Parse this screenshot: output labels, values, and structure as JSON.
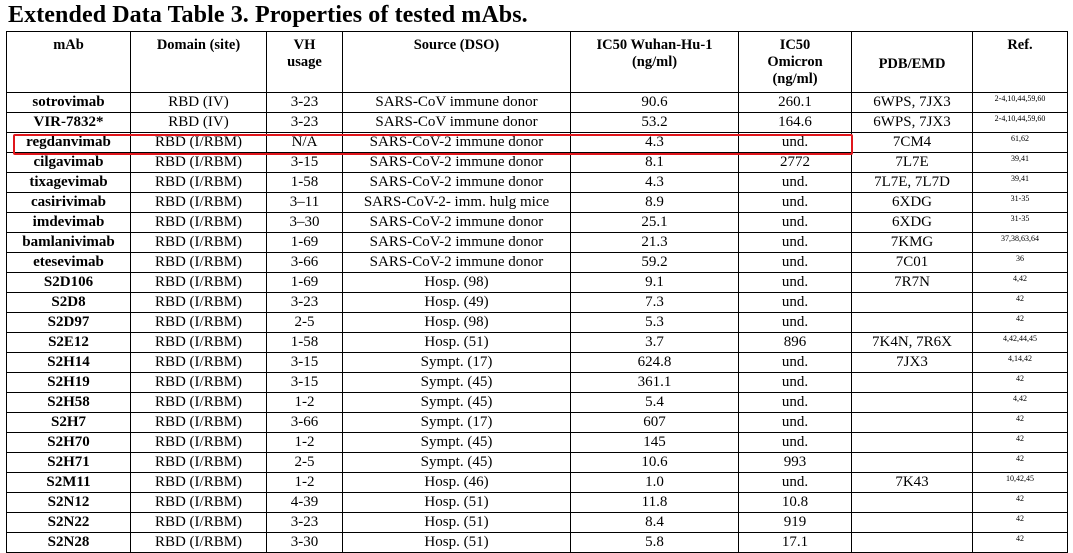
{
  "title": "Extended Data Table 3. Properties of tested mAbs.",
  "colors": {
    "highlight": "#e0161c"
  },
  "columns": [
    {
      "key": "mab",
      "label": "mAb"
    },
    {
      "key": "domain",
      "label": "Domain (site)"
    },
    {
      "key": "vh",
      "label": "VH\nusage"
    },
    {
      "key": "source",
      "label": "Source (DSO)"
    },
    {
      "key": "ic50_wuhan",
      "label": "IC50 Wuhan-Hu-1\n(ng/ml)"
    },
    {
      "key": "ic50_omicron",
      "label": "IC50\nOmicron\n(ng/ml)"
    },
    {
      "key": "pdb",
      "label": "PDB/EMD"
    },
    {
      "key": "ref",
      "label": "Ref."
    }
  ],
  "highlighted_row": "regdanvimab",
  "rows": [
    {
      "mab": "sotrovimab",
      "domain": "RBD (IV)",
      "vh": "3-23",
      "source": "SARS-CoV immune donor",
      "ic50_wuhan": "90.6",
      "ic50_omicron": "260.1",
      "pdb": "6WPS, 7JX3",
      "ref": "2-4,10,44,59,60"
    },
    {
      "mab": "VIR-7832*",
      "domain": "RBD (IV)",
      "vh": "3-23",
      "source": "SARS-CoV immune donor",
      "ic50_wuhan": "53.2",
      "ic50_omicron": "164.6",
      "pdb": "6WPS, 7JX3",
      "ref": "2-4,10,44,59,60"
    },
    {
      "mab": "regdanvimab",
      "domain": "RBD (I/RBM)",
      "vh": "N/A",
      "source": "SARS-CoV-2 immune donor",
      "ic50_wuhan": "4.3",
      "ic50_omicron": "und.",
      "pdb": "7CM4",
      "ref": "61,62"
    },
    {
      "mab": "cilgavimab",
      "domain": "RBD (I/RBM)",
      "vh": "3-15",
      "source": "SARS-CoV-2 immune donor",
      "ic50_wuhan": "8.1",
      "ic50_omicron": "2772",
      "pdb": "7L7E",
      "ref": "39,41"
    },
    {
      "mab": "tixagevimab",
      "domain": "RBD (I/RBM)",
      "vh": "1-58",
      "source": "SARS-CoV-2 immune donor",
      "ic50_wuhan": "4.3",
      "ic50_omicron": "und.",
      "pdb": "7L7E, 7L7D",
      "ref": "39,41"
    },
    {
      "mab": "casirivimab",
      "domain": "RBD (I/RBM)",
      "vh": "3–11",
      "source": "SARS-CoV-2- imm. hulg mice",
      "ic50_wuhan": "8.9",
      "ic50_omicron": "und.",
      "pdb": "6XDG",
      "ref": "31-35"
    },
    {
      "mab": "imdevimab",
      "domain": "RBD (I/RBM)",
      "vh": "3–30",
      "source": "SARS-CoV-2 immune donor",
      "ic50_wuhan": "25.1",
      "ic50_omicron": "und.",
      "pdb": "6XDG",
      "ref": "31-35"
    },
    {
      "mab": "bamlanivimab",
      "domain": "RBD (I/RBM)",
      "vh": "1-69",
      "source": "SARS-CoV-2 immune donor",
      "ic50_wuhan": "21.3",
      "ic50_omicron": "und.",
      "pdb": "7KMG",
      "ref": "37,38,63,64"
    },
    {
      "mab": "etesevimab",
      "domain": "RBD (I/RBM)",
      "vh": "3-66",
      "source": "SARS-CoV-2 immune donor",
      "ic50_wuhan": "59.2",
      "ic50_omicron": "und.",
      "pdb": "7C01",
      "ref": "36"
    },
    {
      "mab": "S2D106",
      "domain": "RBD (I/RBM)",
      "vh": "1-69",
      "source": "Hosp. (98)",
      "ic50_wuhan": "9.1",
      "ic50_omicron": "und.",
      "pdb": "7R7N",
      "ref": "4,42"
    },
    {
      "mab": "S2D8",
      "domain": "RBD (I/RBM)",
      "vh": "3-23",
      "source": "Hosp. (49)",
      "ic50_wuhan": "7.3",
      "ic50_omicron": "und.",
      "pdb": "",
      "ref": "42"
    },
    {
      "mab": "S2D97",
      "domain": "RBD (I/RBM)",
      "vh": "2-5",
      "source": "Hosp. (98)",
      "ic50_wuhan": "5.3",
      "ic50_omicron": "und.",
      "pdb": "",
      "ref": "42"
    },
    {
      "mab": "S2E12",
      "domain": "RBD (I/RBM)",
      "vh": "1-58",
      "source": "Hosp. (51)",
      "ic50_wuhan": "3.7",
      "ic50_omicron": "896",
      "pdb": "7K4N, 7R6X",
      "ref": "4,42,44,45"
    },
    {
      "mab": "S2H14",
      "domain": "RBD (I/RBM)",
      "vh": "3-15",
      "source": "Sympt. (17)",
      "ic50_wuhan": "624.8",
      "ic50_omicron": "und.",
      "pdb": "7JX3",
      "ref": "4,14,42"
    },
    {
      "mab": "S2H19",
      "domain": "RBD (I/RBM)",
      "vh": "3-15",
      "source": "Sympt. (45)",
      "ic50_wuhan": "361.1",
      "ic50_omicron": "und.",
      "pdb": "",
      "ref": "42"
    },
    {
      "mab": "S2H58",
      "domain": "RBD (I/RBM)",
      "vh": "1-2",
      "source": "Sympt. (45)",
      "ic50_wuhan": "5.4",
      "ic50_omicron": "und.",
      "pdb": "",
      "ref": "4,42"
    },
    {
      "mab": "S2H7",
      "domain": "RBD (I/RBM)",
      "vh": "3-66",
      "source": "Sympt. (17)",
      "ic50_wuhan": "607",
      "ic50_omicron": "und.",
      "pdb": "",
      "ref": "42"
    },
    {
      "mab": "S2H70",
      "domain": "RBD (I/RBM)",
      "vh": "1-2",
      "source": "Sympt. (45)",
      "ic50_wuhan": "145",
      "ic50_omicron": "und.",
      "pdb": "",
      "ref": "42"
    },
    {
      "mab": "S2H71",
      "domain": "RBD (I/RBM)",
      "vh": "2-5",
      "source": "Sympt. (45)",
      "ic50_wuhan": "10.6",
      "ic50_omicron": "993",
      "pdb": "",
      "ref": "42"
    },
    {
      "mab": "S2M11",
      "domain": "RBD (I/RBM)",
      "vh": "1-2",
      "source": "Hosp. (46)",
      "ic50_wuhan": "1.0",
      "ic50_omicron": "und.",
      "pdb": "7K43",
      "ref": "10,42,45"
    },
    {
      "mab": "S2N12",
      "domain": "RBD (I/RBM)",
      "vh": "4-39",
      "source": "Hosp. (51)",
      "ic50_wuhan": "11.8",
      "ic50_omicron": "10.8",
      "pdb": "",
      "ref": "42"
    },
    {
      "mab": "S2N22",
      "domain": "RBD (I/RBM)",
      "vh": "3-23",
      "source": "Hosp. (51)",
      "ic50_wuhan": "8.4",
      "ic50_omicron": "919",
      "pdb": "",
      "ref": "42"
    },
    {
      "mab": "S2N28",
      "domain": "RBD (I/RBM)",
      "vh": "3-30",
      "source": "Hosp. (51)",
      "ic50_wuhan": "5.8",
      "ic50_omicron": "17.1",
      "pdb": "",
      "ref": "42"
    }
  ]
}
